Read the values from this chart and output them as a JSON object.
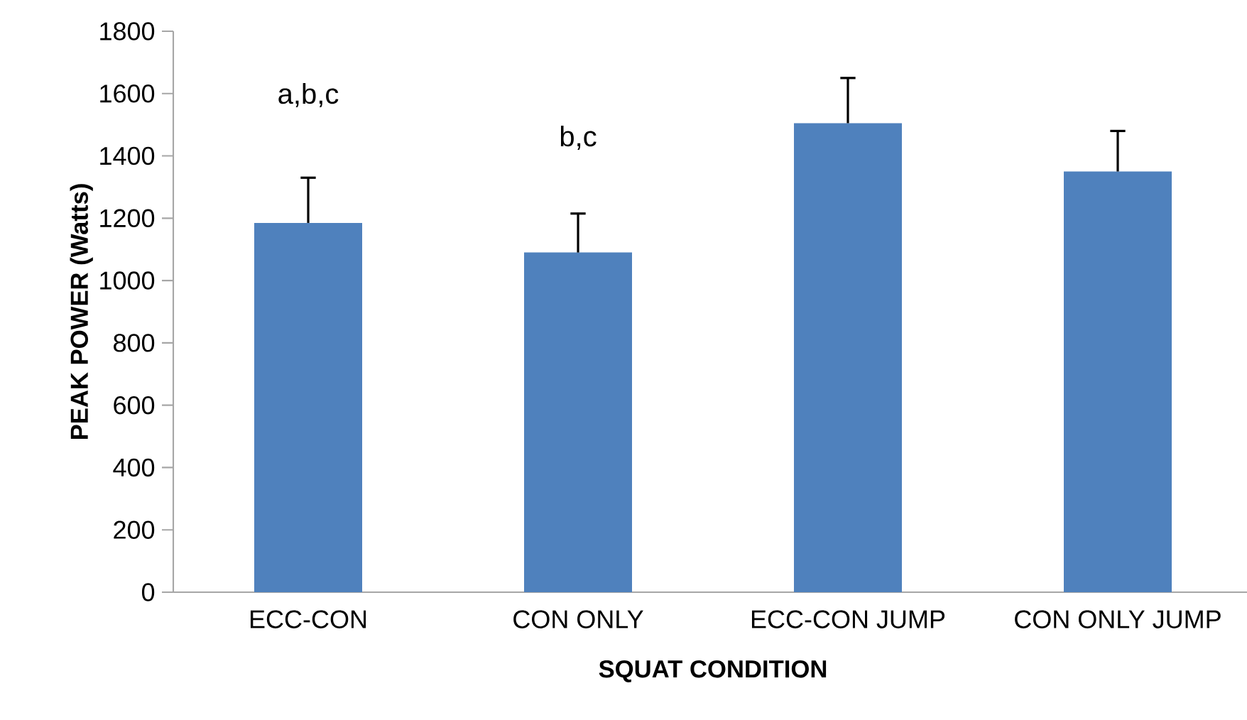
{
  "chart_data": {
    "type": "bar",
    "xlabel": "SQUAT CONDITION",
    "ylabel": "PEAK POWER (Watts)",
    "categories": [
      "ECC-CON",
      "CON ONLY",
      "ECC-CON JUMP",
      "CON ONLY JUMP"
    ],
    "values": [
      1185,
      1090,
      1505,
      1350
    ],
    "color": "#4f81bd",
    "errors": [
      [
        1185,
        1330
      ],
      [
        1090,
        1215
      ],
      [
        1505,
        1650
      ],
      [
        1350,
        1480
      ]
    ],
    "ylim": [
      0,
      1800
    ],
    "yticks": [
      0,
      200,
      400,
      600,
      800,
      1000,
      1200,
      1400,
      1600,
      1800
    ],
    "annotations": [
      "a,b,c",
      "b,c"
    ]
  }
}
